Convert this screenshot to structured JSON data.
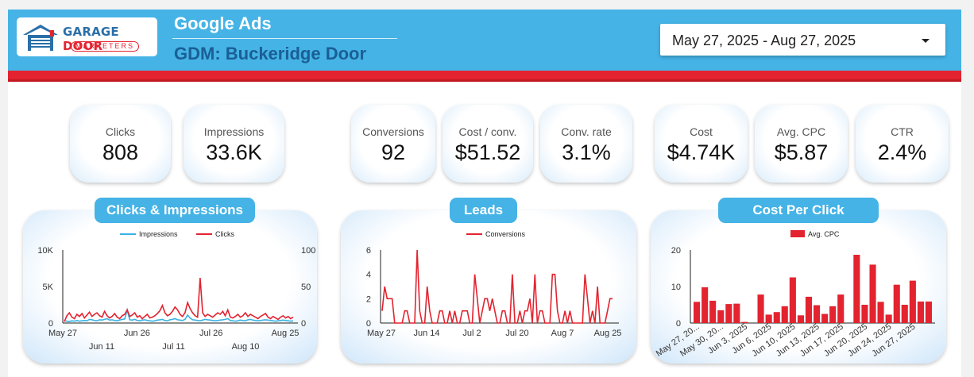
{
  "header": {
    "logo": {
      "line1": "GARAGE",
      "line1_accent": "DOOR",
      "line2": "MARKETERS"
    },
    "title": "Google Ads",
    "subtitle": "GDM: Buckeridge Door",
    "date_range": "May 27, 2025 - Aug 27, 2025",
    "colors": {
      "header_bg": "#45b3e6",
      "accent_red": "#e3232f",
      "subtitle": "#1a5f95"
    }
  },
  "kpis": {
    "clicks": {
      "label": "Clicks",
      "value": "808"
    },
    "impressions": {
      "label": "Impressions",
      "value": "33.6K"
    },
    "conversions": {
      "label": "Conversions",
      "value": "92"
    },
    "cost_per_conv": {
      "label": "Cost / conv.",
      "value": "$51.52"
    },
    "conv_rate": {
      "label": "Conv. rate",
      "value": "3.1%"
    },
    "cost": {
      "label": "Cost",
      "value": "$4.74K"
    },
    "avg_cpc": {
      "label": "Avg. CPC",
      "value": "$5.87"
    },
    "ctr": {
      "label": "CTR",
      "value": "2.4%"
    }
  },
  "cards": {
    "clicks_impressions": "Clicks & Impressions",
    "leads": "Leads",
    "cpc": "Cost Per Click"
  },
  "chart_data": [
    {
      "type": "line",
      "title": "Clicks & Impressions",
      "legend": [
        "Impressions",
        "Clicks"
      ],
      "colors": [
        "#3ab1e3",
        "#e3232f"
      ],
      "y_left": {
        "ticks": [
          "0",
          "5K",
          "10K"
        ],
        "range": [
          0,
          10000
        ]
      },
      "y_right": {
        "ticks": [
          "0",
          "50",
          "100"
        ],
        "range": [
          0,
          100
        ]
      },
      "x_ticks_top": [
        "May 27",
        "Jun 26",
        "Jul 26",
        "Aug 25"
      ],
      "x_ticks_bottom": [
        "Jun 11",
        "Jul 11",
        "Aug 10"
      ],
      "series": [
        {
          "name": "Impressions",
          "axis": "left",
          "values": [
            300,
            250,
            200,
            300,
            250,
            350,
            250,
            300,
            350,
            300,
            500,
            450,
            350,
            300,
            450,
            400,
            500,
            600,
            400,
            450,
            350,
            300,
            400,
            500,
            550,
            1800,
            450,
            400,
            500,
            350,
            300,
            400,
            450,
            350,
            300,
            250,
            300,
            400,
            450,
            500,
            350,
            300,
            450,
            500,
            600,
            450,
            400,
            350,
            500,
            1100,
            700,
            450,
            400,
            350,
            300,
            400,
            500,
            450,
            400,
            350,
            300,
            350,
            400,
            450,
            500,
            600,
            350,
            300,
            250,
            300,
            400,
            350,
            300,
            450,
            500,
            400,
            350,
            300,
            350,
            400,
            450,
            400,
            350,
            300,
            250,
            300,
            350,
            400,
            350,
            300,
            250,
            300
          ]
        },
        {
          "name": "Clicks",
          "axis": "right",
          "values": [
            2,
            10,
            14,
            8,
            6,
            12,
            9,
            13,
            7,
            11,
            15,
            9,
            12,
            14,
            10,
            8,
            16,
            10,
            7,
            9,
            13,
            8,
            6,
            10,
            12,
            18,
            9,
            11,
            14,
            8,
            10,
            6,
            9,
            12,
            7,
            8,
            10,
            13,
            17,
            24,
            14,
            10,
            12,
            16,
            22,
            18,
            12,
            9,
            14,
            28,
            20,
            14,
            10,
            8,
            62,
            14,
            9,
            12,
            10,
            8,
            11,
            14,
            12,
            16,
            10,
            18,
            8,
            7,
            9,
            12,
            8,
            10,
            14,
            9,
            12,
            10,
            8,
            6,
            9,
            11,
            13,
            8,
            6,
            9,
            7,
            5,
            8,
            10,
            7,
            9,
            6,
            8
          ]
        }
      ]
    },
    {
      "type": "line",
      "title": "Leads",
      "legend": [
        "Conversions"
      ],
      "colors": [
        "#e3232f"
      ],
      "y_left": {
        "ticks": [
          "0",
          "2",
          "4",
          "6"
        ],
        "range": [
          0,
          6
        ]
      },
      "x_ticks": [
        "May 27",
        "Jun 14",
        "Jul 2",
        "Jul 20",
        "Aug 7",
        "Aug 25"
      ],
      "series": [
        {
          "name": "Conversions",
          "values": [
            1,
            3,
            2,
            2,
            2,
            0,
            0,
            0,
            0,
            1,
            1,
            0,
            0,
            0,
            6,
            1,
            0,
            0,
            3,
            1,
            0,
            0,
            0,
            1,
            1,
            0,
            0,
            1,
            0,
            1,
            0,
            0,
            1,
            1,
            1,
            0,
            0,
            4,
            2,
            0,
            1,
            2,
            2,
            1,
            2,
            1,
            0,
            0,
            1,
            1,
            0,
            0,
            4,
            0,
            0,
            1,
            0,
            1,
            1,
            2,
            0,
            4,
            0,
            1,
            1,
            0,
            0,
            0,
            4,
            4,
            1,
            0,
            0,
            1,
            0,
            1,
            0,
            0,
            0,
            0,
            0,
            4,
            2,
            0,
            1,
            0,
            3,
            0,
            0,
            0,
            1,
            2,
            2
          ]
        }
      ]
    },
    {
      "type": "bar",
      "title": "Cost Per Click",
      "legend": [
        "Avg. CPC"
      ],
      "colors": [
        "#e3232f"
      ],
      "y_left": {
        "ticks": [
          "0",
          "10",
          "20"
        ],
        "range": [
          0,
          20
        ]
      },
      "x_ticks": [
        "May 27, 20...",
        "May 30, 20...",
        "Jun 3, 2025",
        "Jun 6, 2025",
        "Jun 10, 2025",
        "Jun 13, 2025",
        "Jun 17, 2025",
        "Jun 20, 2025",
        "Jun 24, 2025",
        "Jun 27, 2025"
      ],
      "series": [
        {
          "name": "Avg. CPC",
          "values": [
            5.8,
            9.8,
            6.1,
            3.5,
            5.2,
            5.3,
            0.3,
            0,
            7.8,
            2.3,
            3.0,
            4.6,
            12.5,
            2.1,
            7.2,
            4.9,
            2.5,
            4.6,
            7.8,
            0,
            18.7,
            5.0,
            16.0,
            5.8,
            2.3,
            10.5,
            5.0,
            11.6,
            5.9,
            5.9
          ]
        }
      ]
    }
  ]
}
